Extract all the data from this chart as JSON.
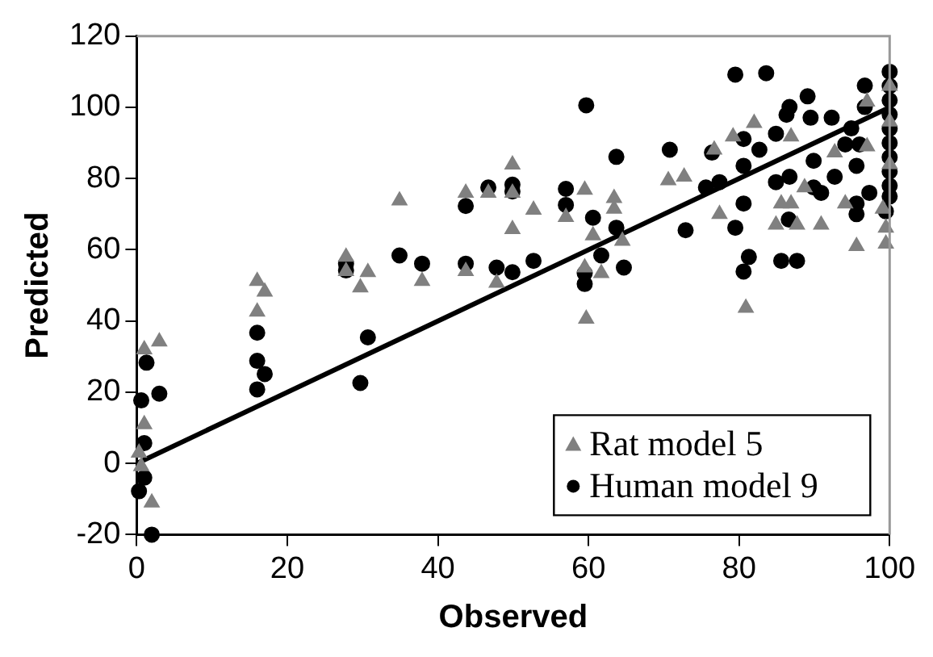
{
  "chart_data": {
    "type": "scatter",
    "xlabel": "Observed",
    "ylabel": "Predicted",
    "xlim": [
      0,
      100
    ],
    "ylim": [
      -20,
      120
    ],
    "xticks": [
      0,
      20,
      40,
      60,
      80,
      100
    ],
    "yticks": [
      -20,
      0,
      20,
      40,
      60,
      80,
      100,
      120
    ],
    "grid": false,
    "legend": "bottom right",
    "series": [
      {
        "name": "Rat model 5",
        "color": "#808080",
        "marker": "triangle",
        "x": [
          1,
          3,
          1,
          0.3,
          0.6,
          2,
          16,
          17,
          16,
          27.8,
          27.8,
          29.7,
          30.7,
          34.9,
          37.9,
          43.7,
          43.7,
          46.7,
          47.8,
          49.9,
          49.9,
          49.9,
          52.7,
          57,
          59.5,
          63.4,
          63.4,
          60.6,
          64.5,
          59.5,
          61.7,
          59.7,
          70.6,
          72.7,
          76.7,
          77.4,
          79.2,
          82,
          86.9,
          85.6,
          86.9,
          84.9,
          87.7,
          90.9,
          88.7,
          92.7,
          94.1,
          95.6,
          99.1,
          99.5,
          99.5,
          97,
          97,
          80.9,
          100,
          100,
          100
        ],
        "values": [
          32,
          34.2,
          11,
          3,
          -0.8,
          -11,
          51.2,
          48.2,
          42.6,
          58,
          54,
          49.4,
          53.7,
          73.8,
          51.2,
          76,
          54,
          76,
          50.7,
          83.9,
          65.8,
          76,
          71.2,
          69.2,
          76.8,
          74.5,
          71.5,
          64,
          62.5,
          55,
          53.4,
          40.6,
          79.5,
          80.5,
          88.1,
          70,
          91.8,
          95.6,
          91.8,
          73,
          73,
          67,
          67,
          67,
          77.5,
          87.3,
          73,
          61,
          71.5,
          66.2,
          61.7,
          101.6,
          89,
          43.7,
          96,
          84,
          106
        ]
      },
      {
        "name": "Human model 9",
        "color": "#000000",
        "marker": "circle",
        "x": [
          1.3,
          0.6,
          3,
          1,
          1,
          0.3,
          2,
          16,
          16,
          17,
          16,
          27.8,
          27.8,
          30.7,
          29.7,
          34.9,
          37.9,
          43.7,
          43.7,
          46.7,
          47.8,
          49.9,
          49.9,
          49.9,
          52.7,
          57,
          57,
          59.7,
          60.6,
          61.7,
          59.5,
          59.5,
          63.7,
          63.7,
          64.7,
          70.8,
          72.9,
          76.4,
          75.6,
          77.4,
          79.5,
          83.6,
          79.5,
          81.3,
          80.6,
          85.6,
          87.7,
          86.6,
          80.6,
          80.6,
          80.6,
          82.7,
          84.9,
          84.9,
          86.7,
          86.7,
          89.1,
          89.5,
          86.3,
          89.9,
          89.9,
          90.9,
          92.3,
          92.7,
          94.1,
          94.9,
          96.7,
          96.7,
          95.6,
          95.6,
          97.3,
          95.6,
          96,
          99.5,
          100,
          100,
          100,
          100,
          100,
          100,
          100,
          100,
          100,
          100
        ],
        "values": [
          28.3,
          17.7,
          19.6,
          5.7,
          -4,
          -7.8,
          -20,
          36.7,
          28.8,
          25.1,
          20.8,
          56.1,
          54.2,
          35.4,
          22.6,
          58.4,
          56.1,
          72.3,
          56.1,
          77.5,
          55,
          78.3,
          76.4,
          53.7,
          56.9,
          77.1,
          72.6,
          100.6,
          69,
          58.4,
          53.4,
          50.4,
          86.1,
          66.2,
          55,
          88.1,
          65.5,
          87.3,
          77.5,
          79,
          109.2,
          109.6,
          66.2,
          58,
          53.9,
          56.9,
          56.9,
          68.5,
          91.1,
          83.6,
          73,
          88.1,
          92.6,
          79,
          80.5,
          100.1,
          103.1,
          97.1,
          97.9,
          85,
          77.5,
          76,
          97.1,
          80.5,
          89.6,
          94.1,
          106.1,
          100.1,
          73,
          70,
          76,
          83.6,
          89.6,
          70.8,
          110,
          106,
          102,
          98,
          94,
          90,
          86,
          82,
          78,
          75
        ]
      },
      {
        "type": "line",
        "color": "#000000",
        "marker": "none",
        "x": [
          0,
          100
        ],
        "values": [
          0,
          100
        ]
      }
    ]
  }
}
